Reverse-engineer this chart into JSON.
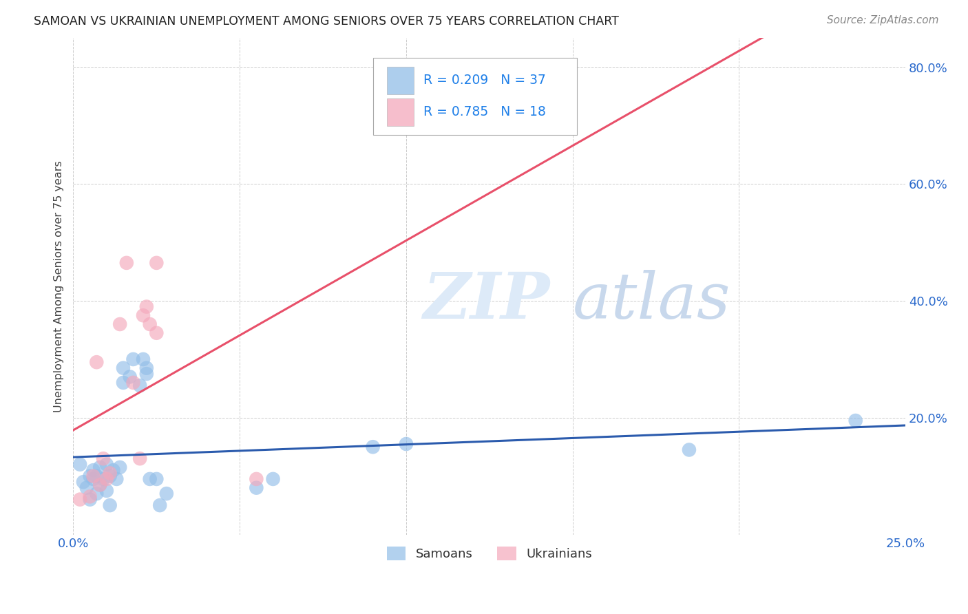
{
  "title": "SAMOAN VS UKRAINIAN UNEMPLOYMENT AMONG SENIORS OVER 75 YEARS CORRELATION CHART",
  "source": "Source: ZipAtlas.com",
  "ylabel": "Unemployment Among Seniors over 75 years",
  "xlim": [
    0.0,
    0.25
  ],
  "ylim": [
    0.0,
    0.85
  ],
  "samoan_color": "#92BEE8",
  "ukrainian_color": "#F4A8BB",
  "samoan_line_color": "#2B5BAD",
  "ukrainian_line_color": "#E8506A",
  "legend_r_color": "#1E7FE8",
  "samoan_x": [
    0.002,
    0.003,
    0.004,
    0.005,
    0.005,
    0.006,
    0.006,
    0.007,
    0.007,
    0.008,
    0.008,
    0.009,
    0.01,
    0.01,
    0.011,
    0.011,
    0.012,
    0.013,
    0.014,
    0.015,
    0.015,
    0.017,
    0.018,
    0.02,
    0.021,
    0.022,
    0.022,
    0.023,
    0.025,
    0.026,
    0.028,
    0.055,
    0.06,
    0.09,
    0.1,
    0.185,
    0.235
  ],
  "samoan_y": [
    0.12,
    0.09,
    0.08,
    0.1,
    0.06,
    0.11,
    0.095,
    0.07,
    0.1,
    0.085,
    0.115,
    0.095,
    0.12,
    0.075,
    0.1,
    0.05,
    0.11,
    0.095,
    0.115,
    0.26,
    0.285,
    0.27,
    0.3,
    0.255,
    0.3,
    0.285,
    0.275,
    0.095,
    0.095,
    0.05,
    0.07,
    0.08,
    0.095,
    0.15,
    0.155,
    0.145,
    0.195
  ],
  "ukrainian_x": [
    0.002,
    0.005,
    0.006,
    0.007,
    0.008,
    0.009,
    0.01,
    0.011,
    0.014,
    0.016,
    0.018,
    0.02,
    0.021,
    0.022,
    0.023,
    0.025,
    0.025,
    0.055
  ],
  "ukrainian_y": [
    0.06,
    0.065,
    0.1,
    0.295,
    0.085,
    0.13,
    0.095,
    0.105,
    0.36,
    0.465,
    0.26,
    0.13,
    0.375,
    0.39,
    0.36,
    0.345,
    0.465,
    0.095
  ],
  "samoan_R": 0.209,
  "samoan_N": 37,
  "ukrainian_R": 0.785,
  "ukrainian_N": 18,
  "grid_color": "#CCCCCC",
  "watermark_color": "#DDEAF8",
  "background_color": "#FFFFFF"
}
